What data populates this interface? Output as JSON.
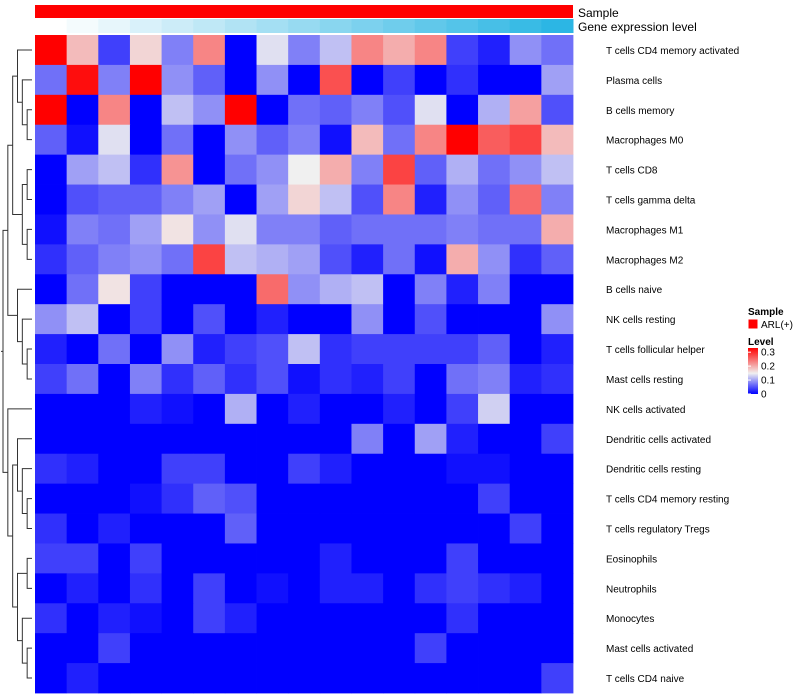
{
  "chart_data": {
    "type": "heatmap",
    "title": "",
    "annotation_tracks": [
      {
        "name": "Sample",
        "colors": [
          "#ff0000"
        ]
      },
      {
        "name": "Gene expression level",
        "colors": [
          "#ffffff",
          "#f4fbfd",
          "#e7f6fb",
          "#d9f1fa",
          "#ccecf8",
          "#bfe8f6",
          "#b1e3f4",
          "#a4dff3",
          "#97daf1",
          "#89d6ef",
          "#7cd1ee",
          "#6fcdec",
          "#61c8ea",
          "#54c4e9",
          "#47bfe7",
          "#39bbe5",
          "#2cb6e4"
        ]
      }
    ],
    "rows": [
      "T cells CD4 memory activated",
      "Plasma cells",
      "B cells memory",
      "Macrophages M0",
      "T cells CD8",
      "T cells gamma delta",
      "Macrophages M1",
      "Macrophages M2",
      "B cells naive",
      "NK cells resting",
      "T cells follicular helper",
      "Mast cells resting",
      "NK cells activated",
      "Dendritic cells activated",
      "Dendritic cells resting",
      "T cells CD4 memory resting",
      "T cells regulatory  Tregs",
      "Eosinophils",
      "Neutrophils",
      "Monocytes",
      "Mast cells activated",
      "T cells CD4 naive"
    ],
    "n_columns": 17,
    "values": [
      [
        0.33,
        0.19,
        0.04,
        0.17,
        0.08,
        0.23,
        0.0,
        0.14,
        0.08,
        0.12,
        0.23,
        0.2,
        0.23,
        0.04,
        0.02,
        0.09,
        0.07
      ],
      [
        0.07,
        0.32,
        0.08,
        0.33,
        0.09,
        0.06,
        0.0,
        0.09,
        0.0,
        0.27,
        0.0,
        0.04,
        0.0,
        0.03,
        0.0,
        0.0,
        0.1
      ],
      [
        0.33,
        0.0,
        0.23,
        0.0,
        0.12,
        0.09,
        0.33,
        0.0,
        0.07,
        0.06,
        0.08,
        0.05,
        0.14,
        0.0,
        0.11,
        0.21,
        0.05
      ],
      [
        0.06,
        0.01,
        0.14,
        0.0,
        0.07,
        0.0,
        0.09,
        0.06,
        0.08,
        0.01,
        0.19,
        0.07,
        0.23,
        0.33,
        0.26,
        0.28,
        0.19
      ],
      [
        0.0,
        0.1,
        0.12,
        0.03,
        0.22,
        0.0,
        0.07,
        0.09,
        0.15,
        0.2,
        0.08,
        0.28,
        0.06,
        0.11,
        0.07,
        0.09,
        0.12
      ],
      [
        0.0,
        0.05,
        0.06,
        0.06,
        0.08,
        0.1,
        0.0,
        0.1,
        0.17,
        0.12,
        0.05,
        0.23,
        0.02,
        0.09,
        0.06,
        0.25,
        0.08
      ],
      [
        0.01,
        0.08,
        0.07,
        0.1,
        0.16,
        0.09,
        0.14,
        0.08,
        0.08,
        0.06,
        0.07,
        0.07,
        0.07,
        0.08,
        0.07,
        0.07,
        0.2
      ],
      [
        0.03,
        0.06,
        0.08,
        0.09,
        0.07,
        0.28,
        0.12,
        0.11,
        0.1,
        0.05,
        0.02,
        0.07,
        0.01,
        0.2,
        0.09,
        0.03,
        0.06
      ],
      [
        0.0,
        0.07,
        0.16,
        0.04,
        0.0,
        0.0,
        0.0,
        0.25,
        0.09,
        0.11,
        0.12,
        0.0,
        0.08,
        0.02,
        0.08,
        0.0,
        0.0
      ],
      [
        0.09,
        0.12,
        0.0,
        0.04,
        0.0,
        0.05,
        0.0,
        0.02,
        0.0,
        0.0,
        0.09,
        0.0,
        0.05,
        0.0,
        0.0,
        0.0,
        0.09
      ],
      [
        0.02,
        0.0,
        0.07,
        0.0,
        0.09,
        0.02,
        0.04,
        0.05,
        0.12,
        0.03,
        0.04,
        0.04,
        0.04,
        0.04,
        0.06,
        0.0,
        0.02
      ],
      [
        0.04,
        0.07,
        0.0,
        0.08,
        0.03,
        0.06,
        0.03,
        0.05,
        0.01,
        0.03,
        0.02,
        0.04,
        0.0,
        0.07,
        0.08,
        0.02,
        0.03
      ],
      [
        0.0,
        0.0,
        0.0,
        0.02,
        0.01,
        0.0,
        0.11,
        0.0,
        0.02,
        0.0,
        0.0,
        0.02,
        0.0,
        0.04,
        0.13,
        0.0,
        0.0
      ],
      [
        0.0,
        0.0,
        0.0,
        0.0,
        0.0,
        0.0,
        0.0,
        0.0,
        0.0,
        0.0,
        0.08,
        0.0,
        0.1,
        0.02,
        0.0,
        0.0,
        0.04
      ],
      [
        0.03,
        0.02,
        0.0,
        0.0,
        0.04,
        0.04,
        0.0,
        0.0,
        0.04,
        0.02,
        0.0,
        0.0,
        0.0,
        0.01,
        0.01,
        0.0,
        0.0
      ],
      [
        0.0,
        0.0,
        0.0,
        0.01,
        0.03,
        0.06,
        0.05,
        0.0,
        0.0,
        0.0,
        0.0,
        0.0,
        0.0,
        0.0,
        0.04,
        0.0,
        0.0
      ],
      [
        0.03,
        0.0,
        0.02,
        0.0,
        0.0,
        0.0,
        0.06,
        0.0,
        0.0,
        0.0,
        0.0,
        0.0,
        0.0,
        0.0,
        0.0,
        0.04,
        0.0
      ],
      [
        0.04,
        0.04,
        0.0,
        0.04,
        0.0,
        0.0,
        0.0,
        0.0,
        0.0,
        0.02,
        0.0,
        0.0,
        0.0,
        0.04,
        0.0,
        0.0,
        0.0
      ],
      [
        0.0,
        0.02,
        0.0,
        0.03,
        0.0,
        0.04,
        0.0,
        0.01,
        0.0,
        0.02,
        0.02,
        0.0,
        0.03,
        0.04,
        0.03,
        0.02,
        0.0
      ],
      [
        0.03,
        0.0,
        0.02,
        0.01,
        0.0,
        0.04,
        0.02,
        0.0,
        0.0,
        0.0,
        0.0,
        0.0,
        0.0,
        0.03,
        0.0,
        0.0,
        0.0
      ],
      [
        0.0,
        0.0,
        0.04,
        0.0,
        0.0,
        0.0,
        0.0,
        0.0,
        0.0,
        0.0,
        0.0,
        0.0,
        0.04,
        0.0,
        0.0,
        0.0,
        0.0
      ],
      [
        0.0,
        0.02,
        0.0,
        0.0,
        0.0,
        0.0,
        0.0,
        0.0,
        0.0,
        0.0,
        0.0,
        0.0,
        0.0,
        0.0,
        0.0,
        0.0,
        0.04
      ]
    ],
    "color_scale": {
      "min": 0,
      "mid": 0.15,
      "max": 0.33,
      "low_color": "#0000ff",
      "mid_color": "#f0f0f0",
      "high_color": "#ff0000"
    },
    "legend_sample": {
      "title": "Sample",
      "label": "ARL(+)",
      "color": "#ff0000"
    },
    "legend_level": {
      "title": "Level",
      "ticks": [
        {
          "value": 0.3,
          "label": "0.3"
        },
        {
          "value": 0.2,
          "label": "0.2"
        },
        {
          "value": 0.1,
          "label": "0.1"
        },
        {
          "value": 0,
          "label": "0"
        }
      ]
    },
    "dendrogram": "hierarchical clustering of rows (left)"
  }
}
